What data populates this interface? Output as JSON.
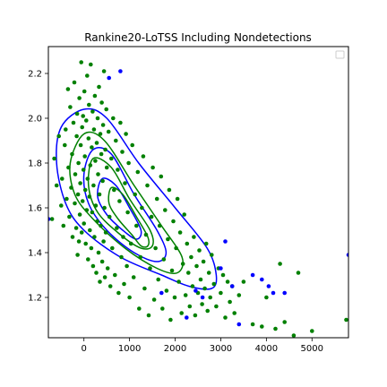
{
  "chart_data": {
    "type": "scatter",
    "title": "Rankine20-LoTSS Including Nondetections",
    "xlabel": "",
    "ylabel": "",
    "xlim": [
      -780,
      5800
    ],
    "ylim": [
      1.02,
      2.32
    ],
    "x_ticks": [
      0,
      1000,
      2000,
      3000,
      4000,
      5000
    ],
    "x_tick_labels": [
      "0",
      "1000",
      "2000",
      "3000",
      "4000",
      "5000"
    ],
    "y_ticks": [
      1.2,
      1.4,
      1.6,
      1.8,
      2.0,
      2.2
    ],
    "y_tick_labels": [
      "1.2",
      "1.4",
      "1.6",
      "1.8",
      "2.0",
      "2.2"
    ],
    "grid": false,
    "legend": {
      "placement": "top-right",
      "entries": []
    },
    "colors": {
      "detections": "#008000",
      "nondetections": "#0000ff",
      "contours": [
        "#0000ff",
        "#008000"
      ]
    },
    "series": [
      {
        "color": "#008000",
        "points": [
          [
            -700,
            1.55
          ],
          [
            -650,
            1.82
          ],
          [
            -600,
            1.7
          ],
          [
            -550,
            1.92
          ],
          [
            -500,
            1.61
          ],
          [
            -480,
            1.73
          ],
          [
            -450,
            1.52
          ],
          [
            -420,
            1.88
          ],
          [
            -400,
            1.95
          ],
          [
            -380,
            1.64
          ],
          [
            -350,
            2.13
          ],
          [
            -340,
            1.78
          ],
          [
            -320,
            1.56
          ],
          [
            -300,
            2.05
          ],
          [
            -280,
            1.69
          ],
          [
            -260,
            1.84
          ],
          [
            -250,
            1.47
          ],
          [
            -230,
            1.98
          ],
          [
            -210,
            2.16
          ],
          [
            -200,
            1.62
          ],
          [
            -190,
            1.75
          ],
          [
            -170,
            1.51
          ],
          [
            -160,
            1.92
          ],
          [
            -150,
            2.02
          ],
          [
            -140,
            1.39
          ],
          [
            -130,
            1.66
          ],
          [
            -120,
            1.8
          ],
          [
            -110,
            1.45
          ],
          [
            -100,
            2.09
          ],
          [
            -90,
            1.57
          ],
          [
            -80,
            1.71
          ],
          [
            -70,
            1.88
          ],
          [
            -60,
            2.25
          ],
          [
            -50,
            1.49
          ],
          [
            -40,
            1.96
          ],
          [
            -30,
            1.63
          ],
          [
            -20,
            2.01
          ],
          [
            -10,
            1.77
          ],
          [
            0,
            1.53
          ],
          [
            10,
            2.12
          ],
          [
            20,
            1.83
          ],
          [
            30,
            1.68
          ],
          [
            40,
            1.44
          ],
          [
            50,
            1.99
          ],
          [
            60,
            1.59
          ],
          [
            70,
            2.19
          ],
          [
            80,
            1.73
          ],
          [
            90,
            1.37
          ],
          [
            100,
            1.91
          ],
          [
            110,
            2.06
          ],
          [
            120,
            1.65
          ],
          [
            130,
            1.5
          ],
          [
            140,
            1.79
          ],
          [
            150,
            2.24
          ],
          [
            160,
            1.42
          ],
          [
            170,
            1.87
          ],
          [
            180,
            1.58
          ],
          [
            190,
            2.03
          ],
          [
            200,
            1.34
          ],
          [
            210,
            1.7
          ],
          [
            220,
            1.95
          ],
          [
            230,
            1.47
          ],
          [
            240,
            2.1
          ],
          [
            250,
            1.81
          ],
          [
            260,
            1.61
          ],
          [
            270,
            1.31
          ],
          [
            280,
            1.89
          ],
          [
            290,
            1.54
          ],
          [
            300,
            2.0
          ],
          [
            310,
            1.75
          ],
          [
            320,
            1.4
          ],
          [
            330,
            2.14
          ],
          [
            340,
            1.66
          ],
          [
            350,
            1.27
          ],
          [
            360,
            1.93
          ],
          [
            370,
            1.52
          ],
          [
            380,
            1.84
          ],
          [
            390,
            2.07
          ],
          [
            400,
            1.36
          ],
          [
            410,
            1.72
          ],
          [
            420,
            1.97
          ],
          [
            430,
            1.45
          ],
          [
            440,
            2.21
          ],
          [
            450,
            1.6
          ],
          [
            460,
            1.29
          ],
          [
            470,
            1.86
          ],
          [
            480,
            1.49
          ],
          [
            490,
            2.04
          ],
          [
            500,
            1.78
          ],
          [
            520,
            1.33
          ],
          [
            540,
            1.94
          ],
          [
            560,
            1.56
          ],
          [
            580,
            1.25
          ],
          [
            600,
            1.82
          ],
          [
            620,
            1.42
          ],
          [
            640,
            2.0
          ],
          [
            660,
            1.68
          ],
          [
            680,
            1.3
          ],
          [
            700,
            1.9
          ],
          [
            720,
            1.51
          ],
          [
            740,
            1.77
          ],
          [
            760,
            1.22
          ],
          [
            780,
            1.63
          ],
          [
            800,
            1.98
          ],
          [
            820,
            1.38
          ],
          [
            840,
            1.85
          ],
          [
            860,
            1.47
          ],
          [
            880,
            1.26
          ],
          [
            900,
            1.71
          ],
          [
            920,
            1.93
          ],
          [
            940,
            1.34
          ],
          [
            960,
            1.58
          ],
          [
            980,
            1.8
          ],
          [
            1000,
            1.2
          ],
          [
            1030,
            1.44
          ],
          [
            1060,
            1.88
          ],
          [
            1090,
            1.29
          ],
          [
            1120,
            1.66
          ],
          [
            1150,
            1.52
          ],
          [
            1180,
            1.76
          ],
          [
            1210,
            1.15
          ],
          [
            1240,
            1.38
          ],
          [
            1270,
            1.6
          ],
          [
            1300,
            1.83
          ],
          [
            1330,
            1.24
          ],
          [
            1360,
            1.48
          ],
          [
            1390,
            1.7
          ],
          [
            1420,
            1.12
          ],
          [
            1450,
            1.33
          ],
          [
            1480,
            1.56
          ],
          [
            1510,
            1.78
          ],
          [
            1540,
            1.19
          ],
          [
            1570,
            1.42
          ],
          [
            1600,
            1.64
          ],
          [
            1630,
            1.28
          ],
          [
            1660,
            1.52
          ],
          [
            1690,
            1.74
          ],
          [
            1720,
            1.15
          ],
          [
            1750,
            1.37
          ],
          [
            1780,
            1.59
          ],
          [
            1810,
            1.23
          ],
          [
            1840,
            1.46
          ],
          [
            1870,
            1.68
          ],
          [
            1900,
            1.1
          ],
          [
            1930,
            1.32
          ],
          [
            1960,
            1.54
          ],
          [
            1990,
            1.2
          ],
          [
            2020,
            1.42
          ],
          [
            2050,
            1.64
          ],
          [
            2080,
            1.27
          ],
          [
            2110,
            1.49
          ],
          [
            2140,
            1.13
          ],
          [
            2170,
            1.35
          ],
          [
            2200,
            1.57
          ],
          [
            2230,
            1.21
          ],
          [
            2260,
            1.44
          ],
          [
            2290,
            1.31
          ],
          [
            2320,
            1.16
          ],
          [
            2350,
            1.38
          ],
          [
            2380,
            1.25
          ],
          [
            2410,
            1.47
          ],
          [
            2440,
            1.12
          ],
          [
            2470,
            1.34
          ],
          [
            2500,
            1.22
          ],
          [
            2530,
            1.41
          ],
          [
            2560,
            1.28
          ],
          [
            2590,
            1.17
          ],
          [
            2620,
            1.36
          ],
          [
            2650,
            1.24
          ],
          [
            2680,
            1.44
          ],
          [
            2710,
            1.14
          ],
          [
            2740,
            1.31
          ],
          [
            2770,
            1.2
          ],
          [
            2800,
            1.39
          ],
          [
            2850,
            1.26
          ],
          [
            2900,
            1.16
          ],
          [
            2950,
            1.33
          ],
          [
            3000,
            1.22
          ],
          [
            3050,
            1.3
          ],
          [
            3100,
            1.11
          ],
          [
            3150,
            1.27
          ],
          [
            3200,
            1.18
          ],
          [
            3250,
            1.25
          ],
          [
            3300,
            1.13
          ],
          [
            3400,
            1.21
          ],
          [
            3500,
            1.27
          ],
          [
            3700,
            1.08
          ],
          [
            3900,
            1.07
          ],
          [
            4000,
            1.2
          ],
          [
            4200,
            1.06
          ],
          [
            4300,
            1.35
          ],
          [
            4400,
            1.09
          ],
          [
            4600,
            1.03
          ],
          [
            4700,
            1.31
          ],
          [
            5000,
            1.05
          ],
          [
            5750,
            1.1
          ]
        ]
      },
      {
        "color": "#0000ff",
        "points": [
          [
            -780,
            1.55
          ],
          [
            550,
            2.18
          ],
          [
            800,
            2.21
          ],
          [
            3000,
            1.33
          ],
          [
            3100,
            1.45
          ],
          [
            3250,
            1.25
          ],
          [
            3400,
            1.08
          ],
          [
            3700,
            1.3
          ],
          [
            3900,
            1.28
          ],
          [
            4050,
            1.25
          ],
          [
            4150,
            1.22
          ],
          [
            4400,
            1.22
          ],
          [
            5800,
            1.39
          ],
          [
            2250,
            1.11
          ],
          [
            2600,
            1.2
          ],
          [
            1700,
            1.22
          ],
          [
            2450,
            1.23
          ]
        ]
      }
    ],
    "contours": [
      {
        "color": "#0000ff",
        "level": 1,
        "points": [
          [
            0,
            2.04
          ],
          [
            500,
            2.0
          ],
          [
            1200,
            1.8
          ],
          [
            2000,
            1.6
          ],
          [
            2700,
            1.42
          ],
          [
            2900,
            1.3
          ],
          [
            2800,
            1.24
          ],
          [
            2300,
            1.25
          ],
          [
            1700,
            1.3
          ],
          [
            800,
            1.38
          ],
          [
            0,
            1.5
          ],
          [
            -400,
            1.62
          ],
          [
            -600,
            1.8
          ],
          [
            -500,
            1.96
          ]
        ]
      },
      {
        "color": "#008000",
        "level": 2,
        "points": [
          [
            0,
            1.93
          ],
          [
            450,
            1.9
          ],
          [
            1100,
            1.7
          ],
          [
            1700,
            1.52
          ],
          [
            2150,
            1.38
          ],
          [
            2050,
            1.31
          ],
          [
            1600,
            1.33
          ],
          [
            900,
            1.42
          ],
          [
            200,
            1.55
          ],
          [
            -200,
            1.66
          ],
          [
            -300,
            1.8
          ]
        ]
      },
      {
        "color": "#0000ff",
        "level": 3,
        "points": [
          [
            200,
            1.86
          ],
          [
            600,
            1.84
          ],
          [
            1100,
            1.66
          ],
          [
            1600,
            1.5
          ],
          [
            1800,
            1.4
          ],
          [
            1600,
            1.36
          ],
          [
            1100,
            1.4
          ],
          [
            500,
            1.5
          ],
          [
            100,
            1.62
          ],
          [
            0,
            1.75
          ]
        ]
      },
      {
        "color": "#008000",
        "level": 4,
        "points": [
          [
            200,
            1.82
          ],
          [
            600,
            1.78
          ],
          [
            1000,
            1.64
          ],
          [
            1450,
            1.5
          ],
          [
            1500,
            1.43
          ],
          [
            1250,
            1.42
          ],
          [
            800,
            1.48
          ],
          [
            300,
            1.58
          ],
          [
            100,
            1.7
          ]
        ]
      },
      {
        "color": "#0000ff",
        "level": 5,
        "points": [
          [
            400,
            1.73
          ],
          [
            700,
            1.7
          ],
          [
            1000,
            1.6
          ],
          [
            1250,
            1.5
          ],
          [
            1150,
            1.46
          ],
          [
            850,
            1.5
          ],
          [
            500,
            1.57
          ],
          [
            300,
            1.65
          ]
        ]
      },
      {
        "color": "#008000",
        "level": 6,
        "points": [
          [
            600,
            1.69
          ],
          [
            850,
            1.66
          ],
          [
            1150,
            1.56
          ],
          [
            1400,
            1.47
          ],
          [
            1400,
            1.43
          ],
          [
            1250,
            1.43
          ],
          [
            1050,
            1.48
          ],
          [
            750,
            1.55
          ],
          [
            550,
            1.62
          ]
        ]
      }
    ]
  }
}
